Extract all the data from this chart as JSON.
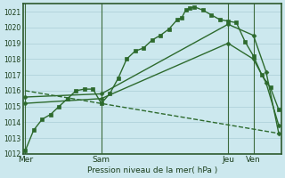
{
  "background_color": "#cce8ee",
  "grid_color": "#aacdd6",
  "line_color": "#2d6a2d",
  "title": "Pression niveau de la mer( hPa )",
  "ylim": [
    1012,
    1021.5
  ],
  "ytick_min": 1012,
  "ytick_max": 1022,
  "day_labels": [
    "Mer",
    "Sam",
    "Jeu",
    "Ven"
  ],
  "day_positions": [
    0,
    3,
    8,
    9
  ],
  "xlim": [
    -0.1,
    10.1
  ],
  "series": [
    {
      "x": [
        0,
        0.33,
        0.67,
        1,
        1.33,
        1.67,
        2,
        2.33,
        2.67,
        3,
        3.33,
        3.67,
        4,
        4.33,
        4.67,
        5,
        5.33,
        5.67,
        6,
        6.17,
        6.33,
        6.5,
        6.67,
        7,
        7.33,
        7.67,
        8,
        8.33,
        8.67,
        9,
        9.33,
        9.67,
        10
      ],
      "y": [
        1012.2,
        1013.5,
        1014.2,
        1014.5,
        1015.0,
        1015.5,
        1016.0,
        1016.1,
        1016.1,
        1015.2,
        1015.8,
        1016.8,
        1018.0,
        1018.5,
        1018.7,
        1019.2,
        1019.5,
        1019.9,
        1020.5,
        1020.6,
        1021.1,
        1021.2,
        1021.3,
        1021.1,
        1020.8,
        1020.5,
        1020.4,
        1020.3,
        1019.1,
        1018.2,
        1017.0,
        1016.2,
        1014.8
      ],
      "marker": "s",
      "markersize": 2.5,
      "linewidth": 1.0,
      "linestyle": "-"
    },
    {
      "x": [
        0,
        3,
        8,
        9,
        9.5,
        10
      ],
      "y": [
        1015.2,
        1015.5,
        1019.0,
        1018.0,
        1016.5,
        1013.8
      ],
      "marker": "D",
      "markersize": 2.5,
      "linewidth": 1.0,
      "linestyle": "-"
    },
    {
      "x": [
        0,
        3,
        8,
        9,
        9.5,
        10
      ],
      "y": [
        1015.6,
        1015.8,
        1020.2,
        1019.5,
        1017.2,
        1013.3
      ],
      "marker": "D",
      "markersize": 2.5,
      "linewidth": 1.0,
      "linestyle": "-"
    },
    {
      "x": [
        0,
        10
      ],
      "y": [
        1016.0,
        1013.3
      ],
      "marker": null,
      "markersize": 0,
      "linewidth": 1.0,
      "linestyle": "--"
    }
  ]
}
